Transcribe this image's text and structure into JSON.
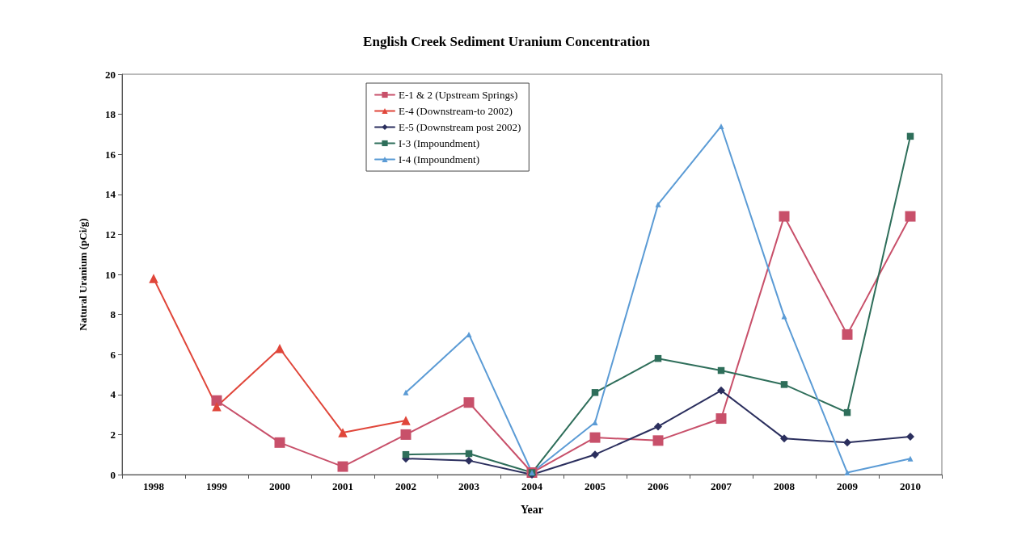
{
  "chart_data": {
    "type": "line",
    "title": "English Creek Sediment Uranium Concentration",
    "xlabel": "Year",
    "ylabel": "Natural Uranium (pCi/g)",
    "categories": [
      "1998",
      "1999",
      "2000",
      "2001",
      "2002",
      "2003",
      "2004",
      "2005",
      "2006",
      "2007",
      "2008",
      "2009",
      "2010"
    ],
    "series": [
      {
        "name": "E-1 & 2 (Upstream Springs)",
        "color": "#c8506a",
        "marker": "square",
        "values": [
          null,
          3.7,
          1.6,
          0.4,
          2.0,
          3.6,
          0.1,
          1.85,
          1.7,
          2.8,
          12.9,
          7.0,
          12.9
        ]
      },
      {
        "name": "E-4 (Downstream-to 2002)",
        "color": "#e0463a",
        "marker": "triangle",
        "values": [
          9.8,
          3.4,
          6.3,
          2.1,
          2.7,
          null,
          null,
          null,
          null,
          null,
          null,
          null,
          null
        ]
      },
      {
        "name": "E-5 (Downstream post 2002)",
        "color": "#2b2f5e",
        "marker": "diamond",
        "values": [
          null,
          null,
          null,
          null,
          0.8,
          0.7,
          0.0,
          1.0,
          2.4,
          4.2,
          1.8,
          1.6,
          1.9
        ]
      },
      {
        "name": "I-3 (Impoundment)",
        "color": "#2e6e5a",
        "marker": "square",
        "values": [
          null,
          null,
          null,
          null,
          1.0,
          1.05,
          0.1,
          4.1,
          5.8,
          5.2,
          4.5,
          3.1,
          16.9
        ]
      },
      {
        "name": "I-4 (Impoundment)",
        "color": "#5b9bd5",
        "marker": "triangle",
        "values": [
          null,
          null,
          null,
          null,
          4.1,
          7.0,
          0.1,
          2.6,
          13.5,
          17.4,
          7.9,
          0.1,
          0.8
        ]
      }
    ],
    "ylim": [
      0,
      20
    ],
    "yticks": [
      0,
      2,
      4,
      6,
      8,
      10,
      12,
      14,
      16,
      18,
      20
    ],
    "grid": false,
    "legend": "top"
  }
}
